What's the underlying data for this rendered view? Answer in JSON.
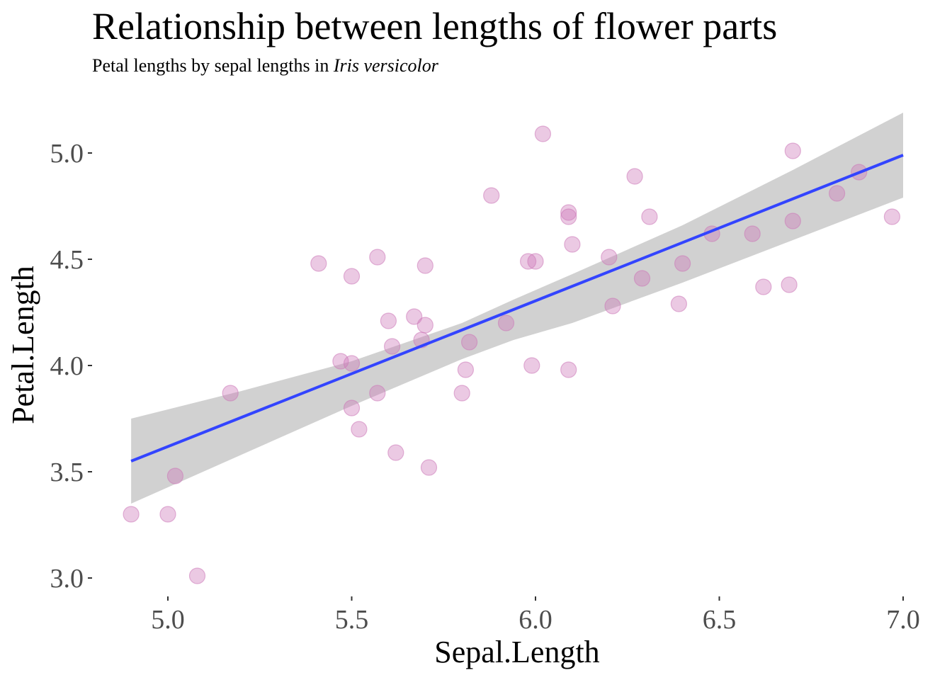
{
  "chart_data": {
    "type": "scatter",
    "title": "Relationship between lengths of flower parts",
    "subtitle": {
      "prefix": "Petal lengths by sepal lengths in ",
      "italic": "Iris versicolor"
    },
    "xlabel": "Sepal.Length",
    "ylabel": "Petal.Length",
    "xlim": [
      4.9,
      7.0
    ],
    "ylim": [
      3.0,
      5.1
    ],
    "x_ticks": [
      {
        "value": 5.0,
        "label": "5.0"
      },
      {
        "value": 5.5,
        "label": "5.5"
      },
      {
        "value": 6.0,
        "label": "6.0"
      },
      {
        "value": 6.5,
        "label": "6.5"
      },
      {
        "value": 7.0,
        "label": "7.0"
      }
    ],
    "y_ticks": [
      {
        "value": 3.0,
        "label": "3.0"
      },
      {
        "value": 3.5,
        "label": "3.5"
      },
      {
        "value": 4.0,
        "label": "4.0"
      },
      {
        "value": 4.5,
        "label": "4.5"
      },
      {
        "value": 5.0,
        "label": "5.0"
      }
    ],
    "grid": false,
    "point_color": "#cc79b8",
    "point_opacity": 0.4,
    "line_color": "#3344ff",
    "band_color": "#bfbfbf",
    "points": [
      {
        "x": 4.9,
        "y": 3.3
      },
      {
        "x": 5.0,
        "y": 3.3
      },
      {
        "x": 5.02,
        "y": 3.48
      },
      {
        "x": 5.08,
        "y": 3.01
      },
      {
        "x": 5.17,
        "y": 3.87
      },
      {
        "x": 5.41,
        "y": 4.48
      },
      {
        "x": 5.47,
        "y": 4.02
      },
      {
        "x": 5.5,
        "y": 4.42
      },
      {
        "x": 5.5,
        "y": 4.01
      },
      {
        "x": 5.5,
        "y": 3.8
      },
      {
        "x": 5.52,
        "y": 3.7
      },
      {
        "x": 5.57,
        "y": 4.51
      },
      {
        "x": 5.57,
        "y": 3.87
      },
      {
        "x": 5.6,
        "y": 4.21
      },
      {
        "x": 5.61,
        "y": 4.09
      },
      {
        "x": 5.62,
        "y": 3.59
      },
      {
        "x": 5.67,
        "y": 4.23
      },
      {
        "x": 5.7,
        "y": 4.47
      },
      {
        "x": 5.7,
        "y": 4.19
      },
      {
        "x": 5.69,
        "y": 4.12
      },
      {
        "x": 5.71,
        "y": 3.52
      },
      {
        "x": 5.8,
        "y": 3.87
      },
      {
        "x": 5.81,
        "y": 3.98
      },
      {
        "x": 5.82,
        "y": 4.11
      },
      {
        "x": 5.88,
        "y": 4.8
      },
      {
        "x": 5.92,
        "y": 4.2
      },
      {
        "x": 5.98,
        "y": 4.49
      },
      {
        "x": 6.0,
        "y": 4.49
      },
      {
        "x": 5.99,
        "y": 4.0
      },
      {
        "x": 6.02,
        "y": 5.09
      },
      {
        "x": 6.09,
        "y": 4.72
      },
      {
        "x": 6.09,
        "y": 4.7
      },
      {
        "x": 6.1,
        "y": 4.57
      },
      {
        "x": 6.09,
        "y": 3.98
      },
      {
        "x": 6.2,
        "y": 4.51
      },
      {
        "x": 6.21,
        "y": 4.28
      },
      {
        "x": 6.27,
        "y": 4.89
      },
      {
        "x": 6.29,
        "y": 4.41
      },
      {
        "x": 6.31,
        "y": 4.7
      },
      {
        "x": 6.39,
        "y": 4.29
      },
      {
        "x": 6.4,
        "y": 4.48
      },
      {
        "x": 6.48,
        "y": 4.62
      },
      {
        "x": 6.59,
        "y": 4.62
      },
      {
        "x": 6.62,
        "y": 4.37
      },
      {
        "x": 6.69,
        "y": 4.38
      },
      {
        "x": 6.7,
        "y": 5.01
      },
      {
        "x": 6.7,
        "y": 4.68
      },
      {
        "x": 6.82,
        "y": 4.81
      },
      {
        "x": 6.88,
        "y": 4.91
      },
      {
        "x": 6.97,
        "y": 4.7
      }
    ],
    "fit_line": {
      "x": [
        4.9,
        7.0
      ],
      "y": [
        3.55,
        4.99
      ]
    },
    "confidence_band": {
      "x": [
        4.9,
        5.2,
        5.5,
        5.8,
        5.94,
        6.1,
        6.4,
        6.7,
        7.0
      ],
      "upper": [
        3.75,
        3.88,
        4.02,
        4.2,
        4.31,
        4.43,
        4.66,
        4.92,
        5.19
      ],
      "lower": [
        3.35,
        3.58,
        3.81,
        4.03,
        4.12,
        4.2,
        4.39,
        4.59,
        4.79
      ]
    }
  }
}
